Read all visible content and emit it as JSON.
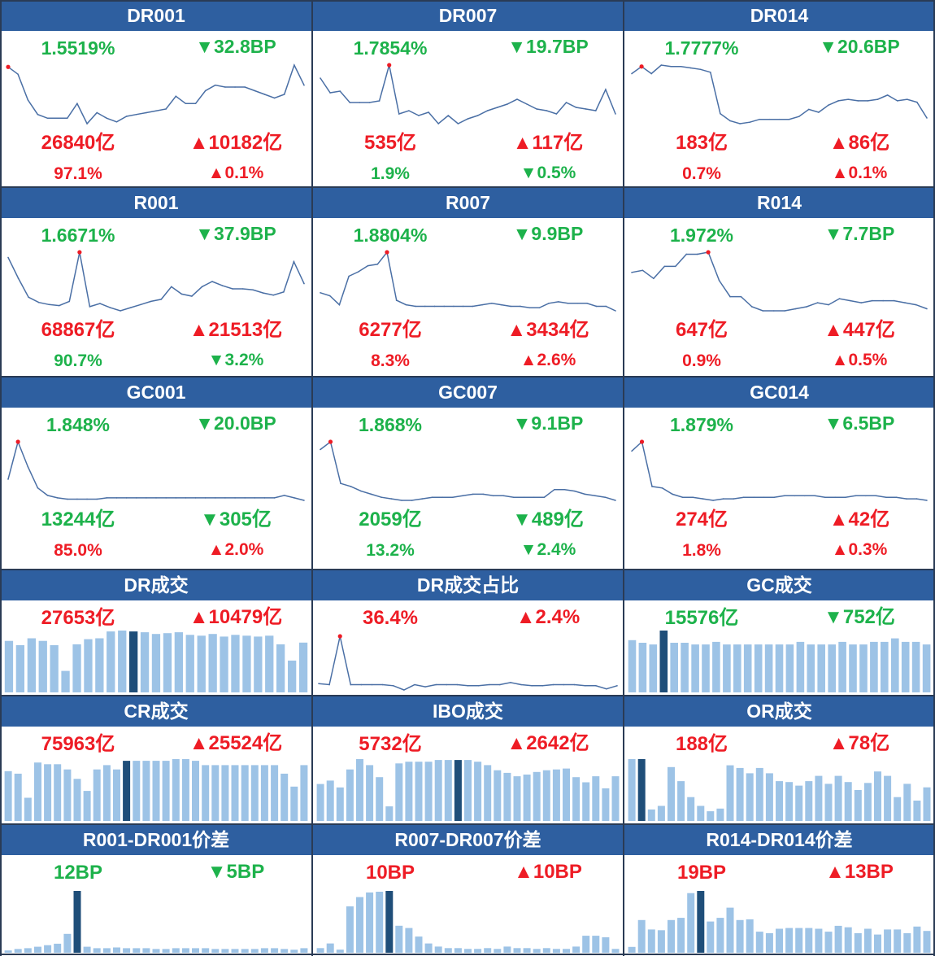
{
  "colors": {
    "header": "#2E5FA0",
    "up": "#EE1C25",
    "down": "#1DB24B",
    "line": "#4A6FA5",
    "bar": "#9DC3E6",
    "bar_highlight": "#1F4E79",
    "dot": "#EE1C25"
  },
  "panels": [
    {
      "title": "DR001",
      "rate": {
        "text": "1.5519%",
        "color": "down"
      },
      "change": {
        "arrow": "▼",
        "text": "32.8BP",
        "color": "down"
      },
      "volume": {
        "text": "26840亿",
        "color": "up"
      },
      "vol_change": {
        "arrow": "▲",
        "text": "10182亿",
        "color": "up"
      },
      "share": {
        "text": "97.1%",
        "color": "up"
      },
      "share_change": {
        "arrow": "▲",
        "text": "0.1%",
        "color": "up"
      }
    },
    {
      "title": "DR007",
      "rate": {
        "text": "1.7854%",
        "color": "down"
      },
      "change": {
        "arrow": "▼",
        "text": "19.7BP",
        "color": "down"
      },
      "volume": {
        "text": "535亿",
        "color": "up"
      },
      "vol_change": {
        "arrow": "▲",
        "text": "117亿",
        "color": "up"
      },
      "share": {
        "text": "1.9%",
        "color": "down"
      },
      "share_change": {
        "arrow": "▼",
        "text": "0.5%",
        "color": "down"
      }
    },
    {
      "title": "DR014",
      "rate": {
        "text": "1.7777%",
        "color": "down"
      },
      "change": {
        "arrow": "▼",
        "text": "20.6BP",
        "color": "down"
      },
      "volume": {
        "text": "183亿",
        "color": "up"
      },
      "vol_change": {
        "arrow": "▲",
        "text": "86亿",
        "color": "up"
      },
      "share": {
        "text": "0.7%",
        "color": "up"
      },
      "share_change": {
        "arrow": "▲",
        "text": "0.1%",
        "color": "up"
      }
    },
    {
      "title": "R001",
      "rate": {
        "text": "1.6671%",
        "color": "down"
      },
      "change": {
        "arrow": "▼",
        "text": "37.9BP",
        "color": "down"
      },
      "volume": {
        "text": "68867亿",
        "color": "up"
      },
      "vol_change": {
        "arrow": "▲",
        "text": "21513亿",
        "color": "up"
      },
      "share": {
        "text": "90.7%",
        "color": "down"
      },
      "share_change": {
        "arrow": "▼",
        "text": "3.2%",
        "color": "down"
      }
    },
    {
      "title": "R007",
      "rate": {
        "text": "1.8804%",
        "color": "down"
      },
      "change": {
        "arrow": "▼",
        "text": "9.9BP",
        "color": "down"
      },
      "volume": {
        "text": "6277亿",
        "color": "up"
      },
      "vol_change": {
        "arrow": "▲",
        "text": "3434亿",
        "color": "up"
      },
      "share": {
        "text": "8.3%",
        "color": "up"
      },
      "share_change": {
        "arrow": "▲",
        "text": "2.6%",
        "color": "up"
      }
    },
    {
      "title": "R014",
      "rate": {
        "text": "1.972%",
        "color": "down"
      },
      "change": {
        "arrow": "▼",
        "text": "7.7BP",
        "color": "down"
      },
      "volume": {
        "text": "647亿",
        "color": "up"
      },
      "vol_change": {
        "arrow": "▲",
        "text": "447亿",
        "color": "up"
      },
      "share": {
        "text": "0.9%",
        "color": "up"
      },
      "share_change": {
        "arrow": "▲",
        "text": "0.5%",
        "color": "up"
      }
    },
    {
      "title": "GC001",
      "rate": {
        "text": "1.848%",
        "color": "down"
      },
      "change": {
        "arrow": "▼",
        "text": "20.0BP",
        "color": "down"
      },
      "volume": {
        "text": "13244亿",
        "color": "down"
      },
      "vol_change": {
        "arrow": "▼",
        "text": "305亿",
        "color": "down"
      },
      "share": {
        "text": "85.0%",
        "color": "up"
      },
      "share_change": {
        "arrow": "▲",
        "text": "2.0%",
        "color": "up"
      }
    },
    {
      "title": "GC007",
      "rate": {
        "text": "1.868%",
        "color": "down"
      },
      "change": {
        "arrow": "▼",
        "text": "9.1BP",
        "color": "down"
      },
      "volume": {
        "text": "2059亿",
        "color": "down"
      },
      "vol_change": {
        "arrow": "▼",
        "text": "489亿",
        "color": "down"
      },
      "share": {
        "text": "13.2%",
        "color": "down"
      },
      "share_change": {
        "arrow": "▼",
        "text": "2.4%",
        "color": "down"
      }
    },
    {
      "title": "GC014",
      "rate": {
        "text": "1.879%",
        "color": "down"
      },
      "change": {
        "arrow": "▼",
        "text": "6.5BP",
        "color": "down"
      },
      "volume": {
        "text": "274亿",
        "color": "up"
      },
      "vol_change": {
        "arrow": "▲",
        "text": "42亿",
        "color": "up"
      },
      "share": {
        "text": "1.8%",
        "color": "up"
      },
      "share_change": {
        "arrow": "▲",
        "text": "0.3%",
        "color": "up"
      }
    },
    {
      "title": "DR成交",
      "value": {
        "text": "27653亿",
        "color": "up"
      },
      "change": {
        "arrow": "▲",
        "text": "10479亿",
        "color": "up"
      }
    },
    {
      "title": "DR成交占比",
      "value": {
        "text": "36.4%",
        "color": "up"
      },
      "change": {
        "arrow": "▲",
        "text": "2.4%",
        "color": "up"
      }
    },
    {
      "title": "GC成交",
      "value": {
        "text": "15576亿",
        "color": "down"
      },
      "change": {
        "arrow": "▼",
        "text": "752亿",
        "color": "down"
      }
    },
    {
      "title": "CR成交",
      "value": {
        "text": "75963亿",
        "color": "up"
      },
      "change": {
        "arrow": "▲",
        "text": "25524亿",
        "color": "up"
      }
    },
    {
      "title": "IBO成交",
      "value": {
        "text": "5732亿",
        "color": "up"
      },
      "change": {
        "arrow": "▲",
        "text": "2642亿",
        "color": "up"
      }
    },
    {
      "title": "OR成交",
      "value": {
        "text": "188亿",
        "color": "up"
      },
      "change": {
        "arrow": "▲",
        "text": "78亿",
        "color": "up"
      }
    },
    {
      "title": "R001-DR001价差",
      "value": {
        "text": "12BP",
        "color": "down"
      },
      "change": {
        "arrow": "▼",
        "text": "5BP",
        "color": "down"
      }
    },
    {
      "title": "R007-DR007价差",
      "value": {
        "text": "10BP",
        "color": "up"
      },
      "change": {
        "arrow": "▲",
        "text": "10BP",
        "color": "up"
      }
    },
    {
      "title": "R014-DR014价差",
      "value": {
        "text": "19BP",
        "color": "up"
      },
      "change": {
        "arrow": "▲",
        "text": "13BP",
        "color": "up"
      }
    }
  ],
  "chart_data": [
    {
      "type": "line",
      "panel": "DR001",
      "values": [
        1.88,
        1.84,
        1.7,
        1.62,
        1.6,
        1.6,
        1.6,
        1.68,
        1.57,
        1.63,
        1.6,
        1.58,
        1.61,
        1.62,
        1.63,
        1.64,
        1.65,
        1.72,
        1.68,
        1.68,
        1.75,
        1.78,
        1.77,
        1.77,
        1.77,
        1.75,
        1.73,
        1.71,
        1.73,
        1.89,
        1.78
      ],
      "highlight_index": 0
    },
    {
      "type": "line",
      "panel": "DR007",
      "values": [
        1.92,
        1.83,
        1.84,
        1.77,
        1.77,
        1.77,
        1.78,
        2.0,
        1.7,
        1.72,
        1.69,
        1.71,
        1.64,
        1.69,
        1.64,
        1.67,
        1.69,
        1.72,
        1.74,
        1.76,
        1.79,
        1.76,
        1.73,
        1.72,
        1.7,
        1.77,
        1.74,
        1.73,
        1.72,
        1.85,
        1.7
      ],
      "highlight_index": 7
    },
    {
      "type": "line",
      "panel": "DR014",
      "values": [
        2.05,
        2.1,
        2.05,
        2.11,
        2.1,
        2.1,
        2.09,
        2.08,
        2.06,
        1.77,
        1.72,
        1.7,
        1.71,
        1.73,
        1.73,
        1.73,
        1.73,
        1.75,
        1.8,
        1.78,
        1.83,
        1.86,
        1.87,
        1.86,
        1.86,
        1.87,
        1.9,
        1.86,
        1.87,
        1.85,
        1.74
      ],
      "highlight_index": 1
    },
    {
      "type": "line",
      "panel": "R001",
      "values": [
        2.0,
        1.8,
        1.62,
        1.57,
        1.55,
        1.54,
        1.58,
        2.05,
        1.53,
        1.56,
        1.52,
        1.49,
        1.52,
        1.55,
        1.58,
        1.6,
        1.72,
        1.65,
        1.63,
        1.72,
        1.77,
        1.73,
        1.7,
        1.7,
        1.69,
        1.66,
        1.64,
        1.67,
        1.96,
        1.75
      ],
      "highlight_index": 7
    },
    {
      "type": "line",
      "panel": "R007",
      "values": [
        2.02,
        2.0,
        1.94,
        2.13,
        2.16,
        2.2,
        2.21,
        2.29,
        1.97,
        1.94,
        1.93,
        1.93,
        1.93,
        1.93,
        1.93,
        1.93,
        1.93,
        1.94,
        1.95,
        1.94,
        1.93,
        1.93,
        1.92,
        1.92,
        1.95,
        1.96,
        1.95,
        1.95,
        1.95,
        1.93,
        1.93,
        1.9
      ],
      "highlight_index": 7
    },
    {
      "type": "line",
      "panel": "R014",
      "values": [
        2.12,
        2.13,
        2.09,
        2.15,
        2.15,
        2.21,
        2.21,
        2.22,
        2.08,
        2.0,
        2.0,
        1.95,
        1.93,
        1.93,
        1.93,
        1.94,
        1.95,
        1.97,
        1.96,
        1.99,
        1.98,
        1.97,
        1.98,
        1.98,
        1.98,
        1.97,
        1.96,
        1.94
      ],
      "highlight_index": 7
    },
    {
      "type": "line",
      "panel": "GC001",
      "values": [
        1.95,
        2.25,
        2.05,
        1.88,
        1.82,
        1.8,
        1.79,
        1.79,
        1.79,
        1.79,
        1.8,
        1.8,
        1.8,
        1.8,
        1.8,
        1.8,
        1.8,
        1.8,
        1.8,
        1.8,
        1.8,
        1.8,
        1.8,
        1.8,
        1.8,
        1.8,
        1.8,
        1.8,
        1.82,
        1.8,
        1.78
      ],
      "highlight_index": 1
    },
    {
      "type": "line",
      "panel": "GC007",
      "values": [
        2.2,
        2.25,
        1.98,
        1.96,
        1.93,
        1.91,
        1.89,
        1.88,
        1.87,
        1.87,
        1.88,
        1.89,
        1.89,
        1.89,
        1.9,
        1.91,
        1.91,
        1.9,
        1.9,
        1.89,
        1.89,
        1.89,
        1.89,
        1.94,
        1.94,
        1.93,
        1.91,
        1.9,
        1.89,
        1.87
      ],
      "highlight_index": 1
    },
    {
      "type": "line",
      "panel": "GC014",
      "values": [
        2.2,
        2.26,
        1.97,
        1.96,
        1.92,
        1.9,
        1.9,
        1.89,
        1.88,
        1.89,
        1.89,
        1.9,
        1.9,
        1.9,
        1.9,
        1.91,
        1.91,
        1.91,
        1.91,
        1.9,
        1.9,
        1.9,
        1.91,
        1.91,
        1.91,
        1.9,
        1.9,
        1.89,
        1.89,
        1.88
      ],
      "highlight_index": 1
    },
    {
      "type": "bar",
      "panel": "DR成交",
      "values": [
        60,
        55,
        63,
        60,
        55,
        25,
        56,
        62,
        63,
        71,
        72,
        71,
        70,
        68,
        69,
        70,
        67,
        66,
        68,
        65,
        67,
        66,
        65,
        66,
        56,
        37,
        58
      ],
      "highlight_index": 11
    },
    {
      "type": "line",
      "panel": "DR成交占比",
      "values": [
        0.25,
        0.24,
        0.7,
        0.24,
        0.24,
        0.24,
        0.24,
        0.23,
        0.19,
        0.24,
        0.22,
        0.24,
        0.24,
        0.24,
        0.23,
        0.23,
        0.24,
        0.24,
        0.26,
        0.24,
        0.23,
        0.23,
        0.24,
        0.24,
        0.24,
        0.23,
        0.23,
        0.2,
        0.23
      ],
      "highlight_index": 2
    },
    {
      "type": "bar",
      "panel": "GC成交",
      "values": [
        60,
        57,
        55,
        71,
        57,
        57,
        55,
        55,
        58,
        55,
        55,
        55,
        55,
        55,
        55,
        55,
        58,
        55,
        55,
        55,
        58,
        55,
        55,
        58,
        58,
        62,
        58,
        58,
        55
      ],
      "highlight_index": 3
    },
    {
      "type": "bar",
      "panel": "CR成交",
      "values": [
        58,
        55,
        27,
        68,
        66,
        66,
        60,
        49,
        35,
        60,
        65,
        60,
        70,
        70,
        70,
        70,
        70,
        72,
        72,
        70,
        65,
        65,
        65,
        65,
        65,
        65,
        65,
        65,
        55,
        40,
        65
      ],
      "highlight_index": 12
    },
    {
      "type": "bar",
      "panel": "IBO成交",
      "values": [
        43,
        47,
        39,
        60,
        72,
        65,
        51,
        17,
        67,
        69,
        69,
        69,
        71,
        71,
        71,
        71,
        69,
        65,
        59,
        56,
        52,
        54,
        57,
        59,
        60,
        61,
        51,
        45,
        52,
        38,
        52
      ],
      "highlight_index": 14
    },
    {
      "type": "bar",
      "panel": "OR成交",
      "values": [
        70,
        70,
        13,
        17,
        61,
        45,
        27,
        17,
        11,
        14,
        63,
        60,
        54,
        60,
        54,
        45,
        44,
        40,
        45,
        51,
        42,
        51,
        44,
        35,
        43,
        56,
        51,
        27,
        42,
        23,
        38
      ],
      "highlight_index": 1
    },
    {
      "type": "bar",
      "panel": "R001-DR001价差",
      "values": [
        3,
        5,
        6,
        8,
        10,
        12,
        25,
        82,
        8,
        6,
        6,
        7,
        6,
        6,
        6,
        5,
        5,
        6,
        6,
        6,
        6,
        5,
        5,
        5,
        5,
        5,
        6,
        6,
        5,
        4,
        6
      ],
      "highlight_index": 7
    },
    {
      "type": "bar",
      "panel": "R007-DR007价差",
      "values": [
        6,
        12,
        4,
        60,
        72,
        78,
        79,
        80,
        35,
        32,
        21,
        12,
        8,
        6,
        6,
        5,
        5,
        6,
        5,
        8,
        6,
        6,
        5,
        6,
        5,
        5,
        8,
        22,
        22,
        20,
        5
      ],
      "highlight_index": 7
    },
    {
      "type": "bar",
      "panel": "R014-DR014价差",
      "values": [
        8,
        45,
        32,
        31,
        45,
        48,
        82,
        85,
        43,
        48,
        62,
        45,
        46,
        29,
        27,
        33,
        34,
        34,
        34,
        33,
        29,
        37,
        35,
        27,
        33,
        25,
        32,
        32,
        27,
        36,
        30
      ],
      "highlight_index": 7
    }
  ]
}
